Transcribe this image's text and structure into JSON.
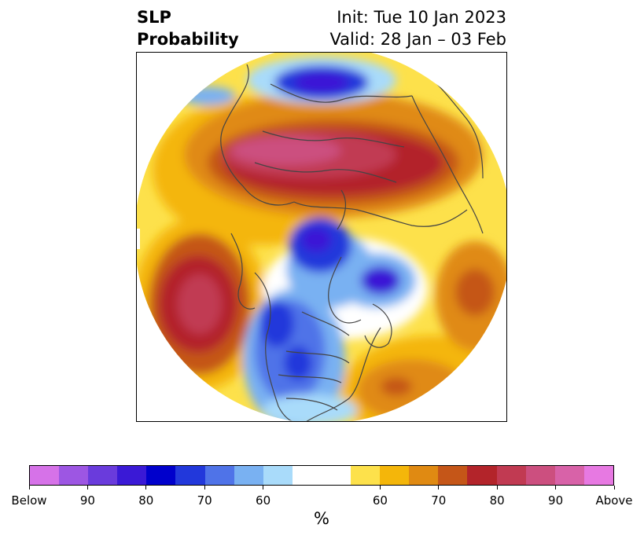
{
  "title": {
    "left_line1": "SLP",
    "left_line2": "Probability",
    "right_line1": "Init: Tue 10 Jan 2023",
    "right_line2": "Valid: 28 Jan – 03 Feb"
  },
  "map": {
    "projection": "north-polar-stereographic",
    "variable": "SLP probability",
    "colors": {
      "below_strong": "#3a19d6",
      "below_medium": "#4f73e8",
      "below_light": "#a9dbfa",
      "above_light": "#fde14b",
      "above_medium": "#e08a12",
      "above_strong": "#b3242a",
      "above_extreme": "#c34a7a",
      "coastline": "#444444"
    }
  },
  "colorbar": {
    "unit": "%",
    "colors": [
      "#d672e8",
      "#9d56e3",
      "#6a3bdc",
      "#3a19d6",
      "#0000cc",
      "#2238db",
      "#4f73e8",
      "#79b1f2",
      "#a9dbfa",
      "#ffffff",
      "#ffffff",
      "#fde14b",
      "#f4b60a",
      "#e08a12",
      "#c55618",
      "#b3242a",
      "#c13a52",
      "#cc4f7f",
      "#d862a8",
      "#e779e2"
    ],
    "tick_labels": [
      "Below",
      "90",
      "80",
      "70",
      "60",
      "60",
      "70",
      "80",
      "90",
      "Above"
    ]
  }
}
